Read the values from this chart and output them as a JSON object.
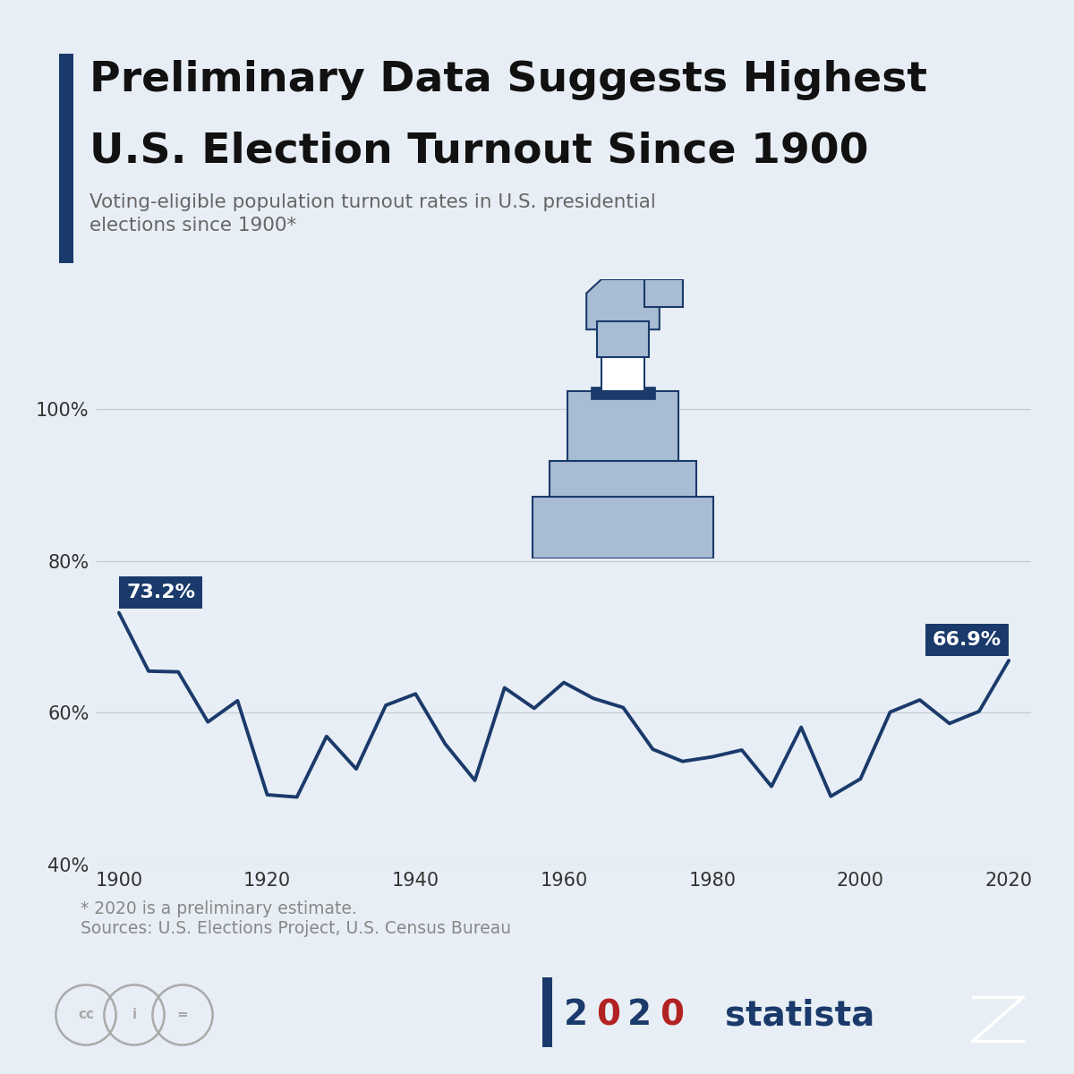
{
  "title_line1": "Preliminary Data Suggests Highest",
  "title_line2": "U.S. Election Turnout Since 1900",
  "subtitle": "Voting-eligible population turnout rates in U.S. presidential\nelections since 1900*",
  "footnote1": "* 2020 is a preliminary estimate.",
  "footnote2": "Sources: U.S. Elections Project, U.S. Census Bureau",
  "bg_color": "#e8eef5",
  "line_color": "#1a3a6b",
  "title_bar_color": "#1a3a6b",
  "label_bg_color": "#1a3a6b",
  "label_text_color": "#ffffff",
  "years": [
    1900,
    1904,
    1908,
    1912,
    1916,
    1920,
    1924,
    1928,
    1932,
    1936,
    1940,
    1944,
    1948,
    1952,
    1956,
    1960,
    1964,
    1968,
    1972,
    1976,
    1980,
    1984,
    1988,
    1992,
    1996,
    2000,
    2004,
    2008,
    2012,
    2016,
    2020
  ],
  "values": [
    73.2,
    65.5,
    65.4,
    58.8,
    61.6,
    49.2,
    48.9,
    56.9,
    52.6,
    61.0,
    62.5,
    55.9,
    51.1,
    63.3,
    60.6,
    64.0,
    61.9,
    60.7,
    55.2,
    53.6,
    54.2,
    55.1,
    50.3,
    58.1,
    49.0,
    51.3,
    60.1,
    61.7,
    58.6,
    60.2,
    66.9
  ],
  "ylim": [
    40,
    103
  ],
  "xlim": [
    1897,
    2023
  ],
  "yticks": [
    40,
    60,
    80,
    100
  ],
  "xticks": [
    1900,
    1920,
    1940,
    1960,
    1980,
    2000,
    2020
  ],
  "annotation_1900_label": "73.2%",
  "annotation_2020_label": "66.9%",
  "light_blue": "#a8bcd4",
  "dark_blue": "#1a3a6b",
  "grid_color": "#c8cdd5",
  "tick_label_color": "#333333",
  "footnote_color": "#888888",
  "icon_color": "#aaaaaa"
}
